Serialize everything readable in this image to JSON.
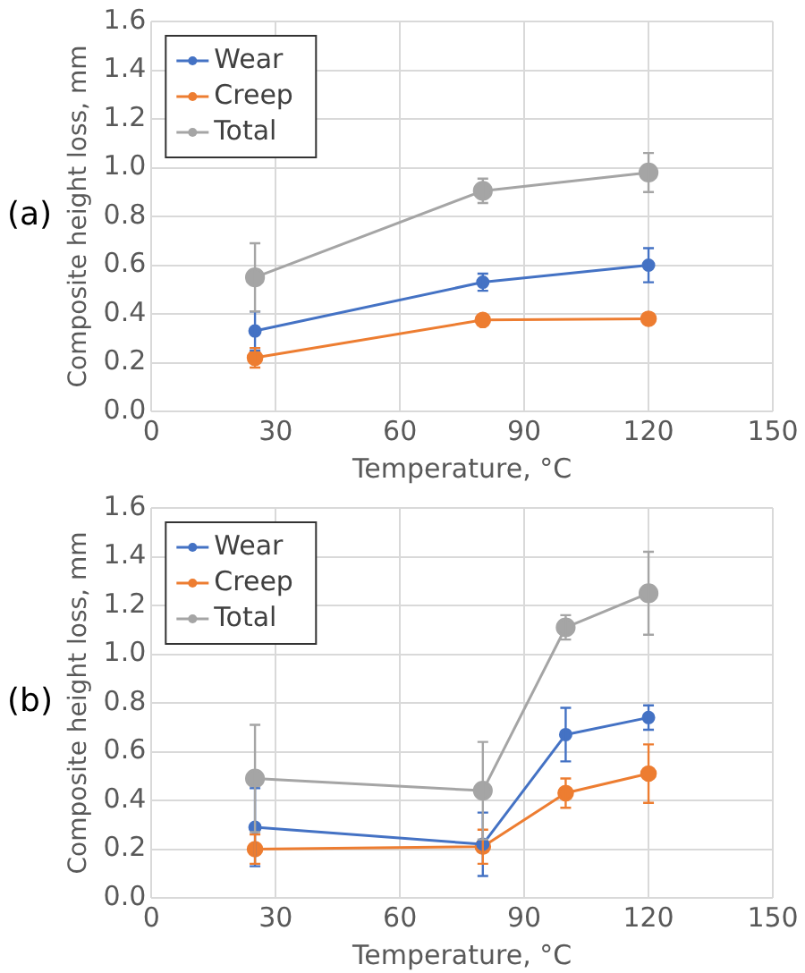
{
  "chart_data": [
    {
      "type": "line",
      "annotations": [
        "(a)"
      ],
      "xlabel": "Temperature, °C",
      "ylabel": "Composite height loss, mm",
      "xlim": [
        0,
        150
      ],
      "xticks": [
        0,
        30,
        60,
        90,
        120,
        150
      ],
      "ylim": [
        0,
        1.6
      ],
      "yticks": [
        {
          "value": 0,
          "label": "0.0"
        },
        {
          "value": 0.2,
          "label": "0.2"
        },
        {
          "value": 0.4,
          "label": "0.4"
        },
        {
          "value": 0.6,
          "label": "0.6"
        },
        {
          "value": 0.8,
          "label": "0.8"
        },
        {
          "value": 1,
          "label": "1.0"
        },
        {
          "value": 1.2,
          "label": "1.2"
        },
        {
          "value": 1.4,
          "label": "1.4"
        },
        {
          "value": 1.6,
          "label": "1.6"
        }
      ],
      "grid": true,
      "legend": "top left",
      "marker": "circle",
      "x": [
        25,
        80,
        120
      ],
      "series": [
        {
          "name": "Wear",
          "color": "#4472c4",
          "values": [
            0.33,
            0.53,
            0.6
          ],
          "errors": [
            0.08,
            0.035,
            0.07
          ]
        },
        {
          "name": "Creep",
          "color": "#ed7d31",
          "values": [
            0.22,
            0.375,
            0.38
          ],
          "errors": [
            0.04,
            0.01,
            0.01
          ]
        },
        {
          "name": "Total",
          "color": "#a5a5a5",
          "values": [
            0.55,
            0.905,
            0.98
          ],
          "errors": [
            0.14,
            0.05,
            0.08
          ]
        }
      ]
    },
    {
      "type": "line",
      "annotations": [
        "(b)"
      ],
      "xlabel": "Temperature, °C",
      "ylabel": "Composite height loss, mm",
      "xlim": [
        0,
        150
      ],
      "xticks": [
        0,
        30,
        60,
        90,
        120,
        150
      ],
      "ylim": [
        0,
        1.6
      ],
      "yticks": [
        {
          "value": 0,
          "label": "0.0"
        },
        {
          "value": 0.2,
          "label": "0.2"
        },
        {
          "value": 0.4,
          "label": "0.4"
        },
        {
          "value": 0.6,
          "label": "0.6"
        },
        {
          "value": 0.8,
          "label": "0.8"
        },
        {
          "value": 1,
          "label": "1.0"
        },
        {
          "value": 1.2,
          "label": "1.2"
        },
        {
          "value": 1.4,
          "label": "1.4"
        },
        {
          "value": 1.6,
          "label": "1.6"
        }
      ],
      "grid": true,
      "legend": "top left",
      "marker": "circle",
      "x": [
        25,
        80,
        100,
        120
      ],
      "series": [
        {
          "name": "Wear",
          "color": "#4472c4",
          "values": [
            0.29,
            0.22,
            0.67,
            0.74
          ],
          "errors": [
            0.16,
            0.13,
            0.11,
            0.05
          ]
        },
        {
          "name": "Creep",
          "color": "#ed7d31",
          "values": [
            0.2,
            0.21,
            0.43,
            0.51
          ],
          "errors": [
            0.06,
            0.07,
            0.06,
            0.12
          ]
        },
        {
          "name": "Total",
          "color": "#a5a5a5",
          "values": [
            0.49,
            0.44,
            1.11,
            1.25
          ],
          "errors": [
            0.22,
            0.2,
            0.05,
            0.17
          ]
        }
      ]
    }
  ]
}
